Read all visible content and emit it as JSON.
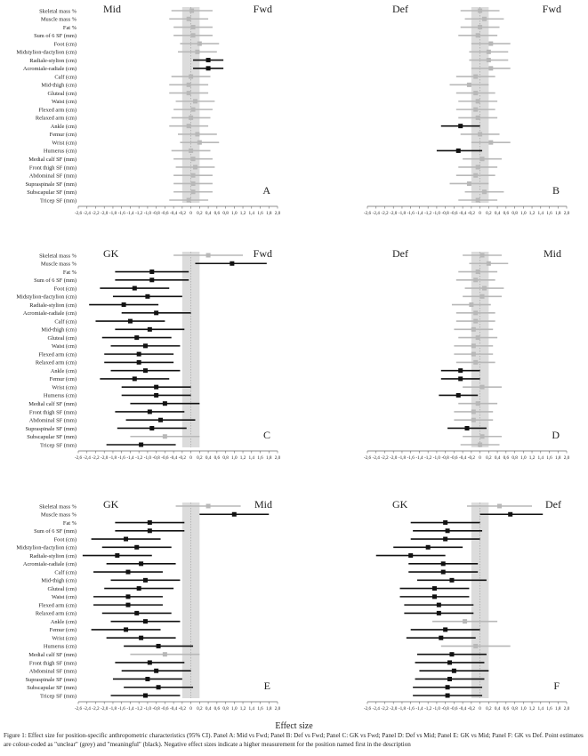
{
  "figure": {
    "xlabel": "Effect size",
    "caption": "Figure 1: Effect size for position-specific anthropometric characteristics (95% CI). Panel A: Mid vs Fwd; Panel B: Def vs Fwd; Panel C: GK vs Fwd; Panel D: Def vs Mid; Panel E: GK vs Mid; Panel F: GK vs Def. Point estimates are colour-coded as \"unclear\" (grey) and \"meaningful\" (black). Negative effect sizes indicate a higher measurement for the position named first in the description"
  },
  "colors": {
    "meaningful": "#111111",
    "unclear": "#b8b8b8",
    "band": "#dcdcdc",
    "axis": "#666666"
  },
  "chart_data": [
    {
      "type": "forest",
      "panel": "A",
      "left_label": "Mid",
      "right_label": "Fwd",
      "xlim": [
        -2.6,
        2.0
      ],
      "band": [
        -0.2,
        0.2
      ],
      "show_labels": true,
      "categories": [
        "Skeletal mass %",
        "Muscle mass %",
        "Fat %",
        "Sum of 6 SF (mm)",
        "Foot (cm)",
        "Midstylion-dactylion (cm)",
        "Radiale-stylion (cm)",
        "Acromiale-radiale (cm)",
        "Calf (cm)",
        "Mid-thigh (cm)",
        "Gluteal (cm)",
        "Waist (cm)",
        "Flexed arm (cm)",
        "Relaxed arm (cm)",
        "Ankle (cm)",
        "Femur (cm)",
        "Wrist (cm)",
        "Humerus (cm)",
        "Medial calf SF (mm)",
        "Front thigh SF (mm)",
        "Abdominal SF (mm)",
        "Supraspinale SF (mm)",
        "Subscapular SF (mm)",
        "Tricep SF (mm)"
      ],
      "estimates": [
        0.02,
        -0.05,
        0.05,
        0.05,
        0.2,
        0.15,
        0.4,
        0.4,
        0.0,
        -0.05,
        -0.05,
        0.1,
        0.05,
        0.0,
        -0.05,
        0.15,
        0.2,
        0.0,
        0.05,
        0.1,
        0.05,
        0.05,
        0.05,
        -0.05
      ],
      "lower": [
        -0.45,
        -0.5,
        -0.4,
        -0.4,
        -0.25,
        -0.3,
        0.05,
        0.05,
        -0.45,
        -0.5,
        -0.5,
        -0.35,
        -0.4,
        -0.45,
        -0.5,
        -0.3,
        -0.25,
        -0.45,
        -0.4,
        -0.35,
        -0.4,
        -0.4,
        -0.4,
        -0.5
      ],
      "upper": [
        0.5,
        0.4,
        0.5,
        0.5,
        0.65,
        0.6,
        0.75,
        0.75,
        0.45,
        0.4,
        0.4,
        0.55,
        0.5,
        0.45,
        0.4,
        0.6,
        0.65,
        0.45,
        0.5,
        0.55,
        0.5,
        0.5,
        0.5,
        0.4
      ],
      "meaningful": [
        false,
        false,
        false,
        false,
        false,
        false,
        true,
        true,
        false,
        false,
        false,
        false,
        false,
        false,
        false,
        false,
        false,
        false,
        false,
        false,
        false,
        false,
        false,
        false
      ]
    },
    {
      "type": "forest",
      "panel": "B",
      "left_label": "Def",
      "right_label": "Fwd",
      "xlim": [
        -2.6,
        2.0
      ],
      "band": [
        -0.2,
        0.2
      ],
      "show_labels": false,
      "categories": [
        "Skeletal mass %",
        "Muscle mass %",
        "Fat %",
        "Sum of 6 SF (mm)",
        "Foot (cm)",
        "Midstylion-dactylion (cm)",
        "Radiale-stylion (cm)",
        "Acromiale-radiale (cm)",
        "Calf (cm)",
        "Mid-thigh (cm)",
        "Gluteal (cm)",
        "Waist (cm)",
        "Flexed arm (cm)",
        "Relaxed arm (cm)",
        "Ankle (cm)",
        "Femur (cm)",
        "Wrist (cm)",
        "Humerus (cm)",
        "Medial calf SF (mm)",
        "Front thigh SF (mm)",
        "Abdominal SF (mm)",
        "Supraspinale SF (mm)",
        "Subscapular SF (mm)",
        "Tricep SF (mm)"
      ],
      "estimates": [
        0.0,
        0.1,
        0.0,
        -0.05,
        0.25,
        0.2,
        0.2,
        0.25,
        -0.1,
        -0.25,
        -0.1,
        -0.05,
        -0.1,
        -0.05,
        -0.45,
        0.0,
        0.25,
        -0.5,
        0.05,
        -0.05,
        -0.1,
        -0.25,
        0.1,
        -0.05
      ],
      "lower": [
        -0.45,
        -0.35,
        -0.45,
        -0.5,
        -0.2,
        -0.25,
        -0.25,
        -0.2,
        -0.55,
        -0.7,
        -0.55,
        -0.5,
        -0.55,
        -0.5,
        -0.9,
        -0.45,
        -0.2,
        -1.0,
        -0.4,
        -0.5,
        -0.55,
        -0.7,
        -0.35,
        -0.5
      ],
      "upper": [
        0.45,
        0.55,
        0.45,
        0.4,
        0.7,
        0.65,
        0.65,
        0.7,
        0.35,
        0.2,
        0.35,
        0.4,
        0.35,
        0.4,
        0.0,
        0.45,
        0.7,
        0.05,
        0.5,
        0.4,
        0.35,
        0.2,
        0.55,
        0.4
      ],
      "meaningful": [
        false,
        false,
        false,
        false,
        false,
        false,
        false,
        false,
        false,
        false,
        false,
        false,
        false,
        false,
        true,
        false,
        false,
        true,
        false,
        false,
        false,
        false,
        false,
        false
      ]
    },
    {
      "type": "forest",
      "panel": "C",
      "left_label": "GK",
      "right_label": "Fwd",
      "xlim": [
        -2.6,
        2.0
      ],
      "band": [
        -0.2,
        0.2
      ],
      "show_labels": true,
      "categories": [
        "Skeletal mass %",
        "Muscle mass %",
        "Fat %",
        "Sum of 6 SF (mm)",
        "Foot (cm)",
        "Midstylion-dactylion (cm)",
        "Radiale-stylion (cm)",
        "Acromiale-radiale (cm)",
        "Calf (cm)",
        "Mid-thigh (cm)",
        "Gluteal (cm)",
        "Waist (cm)",
        "Flexed arm (cm)",
        "Relaxed arm (cm)",
        "Ankle (cm)",
        "Femur (cm)",
        "Wrist (cm)",
        "Humerus (cm)",
        "Medial calf SF (mm)",
        "Front thigh SF (mm)",
        "Abdominal SF (mm)",
        "Supraspinale SF (mm)",
        "Subscapular SF (mm)",
        "Tricep SF (mm)"
      ],
      "estimates": [
        0.4,
        0.95,
        -0.9,
        -0.9,
        -1.3,
        -1.0,
        -1.55,
        -0.8,
        -1.4,
        -0.95,
        -1.25,
        -1.05,
        -1.2,
        -1.2,
        -1.05,
        -1.3,
        -0.8,
        -0.8,
        -0.6,
        -0.95,
        -0.7,
        -0.9,
        -0.6,
        -1.15
      ],
      "lower": [
        -0.4,
        0.1,
        -1.75,
        -1.75,
        -2.1,
        -1.8,
        -2.35,
        -1.6,
        -2.2,
        -1.75,
        -2.05,
        -1.85,
        -2.0,
        -2.0,
        -1.85,
        -2.1,
        -1.6,
        -1.6,
        -1.4,
        -1.75,
        -1.5,
        -1.7,
        -1.4,
        -1.95
      ],
      "upper": [
        1.2,
        1.75,
        -0.05,
        -0.05,
        -0.5,
        -0.2,
        -0.75,
        0.0,
        -0.6,
        -0.15,
        -0.45,
        -0.25,
        -0.4,
        -0.4,
        -0.25,
        -0.5,
        0.0,
        0.0,
        0.2,
        -0.15,
        0.1,
        -0.1,
        0.2,
        -0.35
      ],
      "meaningful": [
        false,
        true,
        true,
        true,
        true,
        true,
        true,
        true,
        true,
        true,
        true,
        true,
        true,
        true,
        true,
        true,
        true,
        true,
        true,
        true,
        true,
        true,
        false,
        true
      ]
    },
    {
      "type": "forest",
      "panel": "D",
      "left_label": "Def",
      "right_label": "Mid",
      "xlim": [
        -2.6,
        2.0
      ],
      "band": [
        -0.2,
        0.2
      ],
      "show_labels": false,
      "categories": [
        "Skeletal mass %",
        "Muscle mass %",
        "Fat %",
        "Sum of 6 SF (mm)",
        "Foot (cm)",
        "Midstylion-dactylion (cm)",
        "Radiale-stylion (cm)",
        "Acromiale-radiale (cm)",
        "Calf (cm)",
        "Mid-thigh (cm)",
        "Gluteal (cm)",
        "Waist (cm)",
        "Flexed arm (cm)",
        "Relaxed arm (cm)",
        "Ankle (cm)",
        "Femur (cm)",
        "Wrist (cm)",
        "Humerus (cm)",
        "Medial calf SF (mm)",
        "Front thigh SF (mm)",
        "Abdominal SF (mm)",
        "Supraspinale SF (mm)",
        "Subscapular SF (mm)",
        "Tricep SF (mm)"
      ],
      "estimates": [
        0.05,
        0.2,
        -0.05,
        -0.1,
        0.1,
        0.05,
        -0.2,
        -0.1,
        -0.1,
        -0.15,
        -0.05,
        -0.15,
        -0.15,
        -0.1,
        -0.45,
        -0.45,
        0.05,
        -0.5,
        -0.05,
        -0.15,
        -0.15,
        -0.3,
        0.05,
        0.0
      ],
      "lower": [
        -0.4,
        -0.25,
        -0.5,
        -0.55,
        -0.35,
        -0.4,
        -0.65,
        -0.55,
        -0.55,
        -0.6,
        -0.5,
        -0.6,
        -0.6,
        -0.55,
        -0.9,
        -0.9,
        -0.4,
        -0.95,
        -0.5,
        -0.6,
        -0.6,
        -0.75,
        -0.4,
        -0.45
      ],
      "upper": [
        0.5,
        0.65,
        0.4,
        0.35,
        0.55,
        0.5,
        0.25,
        0.35,
        0.35,
        0.3,
        0.4,
        0.3,
        0.3,
        0.35,
        0.0,
        0.0,
        0.5,
        -0.05,
        0.4,
        0.3,
        0.3,
        0.15,
        0.5,
        0.45
      ],
      "meaningful": [
        false,
        false,
        false,
        false,
        false,
        false,
        false,
        false,
        false,
        false,
        false,
        false,
        false,
        false,
        true,
        true,
        false,
        true,
        false,
        false,
        false,
        true,
        false,
        false
      ]
    },
    {
      "type": "forest",
      "panel": "E",
      "left_label": "GK",
      "right_label": "Mid",
      "xlim": [
        -2.6,
        2.0
      ],
      "band": [
        -0.2,
        0.2
      ],
      "show_labels": true,
      "categories": [
        "Skeletal mass %",
        "Muscle mass %",
        "Fat %",
        "Sum of 6 SF (mm)",
        "Foot (cm)",
        "Midstylion-dactylion (cm)",
        "Radiale-stylion (cm)",
        "Acromiale-radiale (cm)",
        "Calf (cm)",
        "Mid-thigh (cm)",
        "Gluteal (cm)",
        "Waist (cm)",
        "Flexed arm (cm)",
        "Relaxed arm (cm)",
        "Ankle (cm)",
        "Femur (cm)",
        "Wrist (cm)",
        "Humerus (cm)",
        "Medial calf SF (mm)",
        "Front thigh SF (mm)",
        "Abdominal SF (mm)",
        "Supraspinale SF (mm)",
        "Subscapular SF (mm)",
        "Tricep SF (mm)"
      ],
      "estimates": [
        0.4,
        1.0,
        -0.95,
        -0.95,
        -1.5,
        -1.25,
        -1.7,
        -1.15,
        -1.45,
        -1.05,
        -1.2,
        -1.45,
        -1.45,
        -1.25,
        -1.05,
        -1.5,
        -1.15,
        -0.75,
        -0.6,
        -0.95,
        -0.8,
        -1.0,
        -0.75,
        -1.05
      ],
      "lower": [
        -0.35,
        0.2,
        -1.75,
        -1.75,
        -2.3,
        -2.05,
        -2.5,
        -1.95,
        -2.25,
        -1.85,
        -2.0,
        -2.25,
        -2.25,
        -2.05,
        -1.85,
        -2.3,
        -1.95,
        -1.55,
        -1.4,
        -1.75,
        -1.6,
        -1.8,
        -1.55,
        -1.85
      ],
      "upper": [
        1.15,
        1.8,
        -0.15,
        -0.15,
        -0.7,
        -0.45,
        -0.9,
        -0.35,
        -0.65,
        -0.25,
        -0.4,
        -0.65,
        -0.65,
        -0.45,
        -0.25,
        -0.7,
        -0.35,
        0.05,
        0.2,
        -0.15,
        0.0,
        -0.2,
        0.05,
        -0.25
      ],
      "meaningful": [
        false,
        true,
        true,
        true,
        true,
        true,
        true,
        true,
        true,
        true,
        true,
        true,
        true,
        true,
        true,
        true,
        true,
        true,
        false,
        true,
        true,
        true,
        true,
        true
      ]
    },
    {
      "type": "forest",
      "panel": "F",
      "left_label": "GK",
      "right_label": "Def",
      "xlim": [
        -2.6,
        2.0
      ],
      "band": [
        -0.2,
        0.2
      ],
      "show_labels": false,
      "categories": [
        "Skeletal mass %",
        "Muscle mass %",
        "Fat %",
        "Sum of 6 SF (mm)",
        "Foot (cm)",
        "Midstylion-dactylion (cm)",
        "Radiale-stylion (cm)",
        "Acromiale-radiale (cm)",
        "Calf (cm)",
        "Mid-thigh (cm)",
        "Gluteal (cm)",
        "Waist (cm)",
        "Flexed arm (cm)",
        "Relaxed arm (cm)",
        "Ankle (cm)",
        "Femur (cm)",
        "Wrist (cm)",
        "Humerus (cm)",
        "Medial calf SF (mm)",
        "Front thigh SF (mm)",
        "Abdominal SF (mm)",
        "Supraspinale SF (mm)",
        "Subscapular SF (mm)",
        "Tricep SF (mm)"
      ],
      "estimates": [
        0.45,
        0.7,
        -0.8,
        -0.75,
        -0.8,
        -1.2,
        -1.6,
        -0.85,
        -0.85,
        -0.65,
        -1.05,
        -1.05,
        -0.95,
        -0.95,
        -0.35,
        -0.8,
        -0.9,
        -0.1,
        -0.65,
        -0.7,
        -0.6,
        -0.7,
        -0.75,
        -0.75
      ],
      "lower": [
        -0.3,
        0.0,
        -1.6,
        -1.55,
        -1.6,
        -2.0,
        -2.4,
        -1.65,
        -1.65,
        -1.45,
        -1.85,
        -1.85,
        -1.75,
        -1.75,
        -1.1,
        -1.6,
        -1.7,
        -0.9,
        -1.45,
        -1.5,
        -1.4,
        -1.5,
        -1.55,
        -1.55
      ],
      "upper": [
        1.2,
        1.45,
        0.0,
        0.05,
        0.0,
        -0.4,
        -0.8,
        -0.05,
        -0.05,
        0.15,
        -0.25,
        -0.25,
        -0.15,
        -0.15,
        0.4,
        0.0,
        -0.1,
        0.7,
        0.15,
        0.1,
        0.2,
        0.1,
        0.05,
        0.05
      ],
      "meaningful": [
        false,
        true,
        true,
        true,
        true,
        true,
        true,
        true,
        true,
        true,
        true,
        true,
        true,
        true,
        false,
        true,
        true,
        false,
        true,
        true,
        true,
        true,
        true,
        true
      ]
    }
  ]
}
